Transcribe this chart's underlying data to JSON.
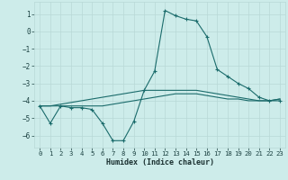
{
  "xlabel": "Humidex (Indice chaleur)",
  "bg_color": "#cdecea",
  "grid_color": "#b8d8d6",
  "line_color": "#1a6b6b",
  "xlim": [
    -0.5,
    23.5
  ],
  "ylim": [
    -6.7,
    1.7
  ],
  "yticks": [
    1,
    0,
    -1,
    -2,
    -3,
    -4,
    -5,
    -6
  ],
  "xticks": [
    0,
    1,
    2,
    3,
    4,
    5,
    6,
    7,
    8,
    9,
    10,
    11,
    12,
    13,
    14,
    15,
    16,
    17,
    18,
    19,
    20,
    21,
    22,
    23
  ],
  "series1_x": [
    0,
    1,
    2,
    3,
    4,
    5,
    6,
    7,
    8,
    9,
    10,
    11,
    12,
    13,
    14,
    15,
    16,
    17,
    18,
    19,
    20,
    21,
    22,
    23
  ],
  "series1_y": [
    -4.3,
    -5.3,
    -4.3,
    -4.4,
    -4.4,
    -4.5,
    -5.3,
    -6.3,
    -6.3,
    -5.2,
    -3.4,
    -2.3,
    1.2,
    0.9,
    0.7,
    0.6,
    -0.3,
    -2.2,
    -2.6,
    -3.0,
    -3.3,
    -3.8,
    -4.0,
    -4.0
  ],
  "series2_x": [
    0,
    1,
    2,
    3,
    4,
    5,
    6,
    7,
    8,
    9,
    10,
    11,
    12,
    13,
    14,
    15,
    16,
    17,
    18,
    19,
    20,
    21,
    22,
    23
  ],
  "series2_y": [
    -4.3,
    -4.3,
    -4.2,
    -4.1,
    -4.0,
    -3.9,
    -3.8,
    -3.7,
    -3.6,
    -3.5,
    -3.4,
    -3.4,
    -3.4,
    -3.4,
    -3.4,
    -3.4,
    -3.5,
    -3.6,
    -3.7,
    -3.8,
    -3.9,
    -4.0,
    -4.0,
    -3.9
  ],
  "series3_x": [
    0,
    1,
    2,
    3,
    4,
    5,
    6,
    7,
    8,
    9,
    10,
    11,
    12,
    13,
    14,
    15,
    16,
    17,
    18,
    19,
    20,
    21,
    22,
    23
  ],
  "series3_y": [
    -4.3,
    -4.3,
    -4.3,
    -4.3,
    -4.3,
    -4.3,
    -4.3,
    -4.2,
    -4.1,
    -4.0,
    -3.9,
    -3.8,
    -3.7,
    -3.6,
    -3.6,
    -3.6,
    -3.7,
    -3.8,
    -3.9,
    -3.9,
    -4.0,
    -4.0,
    -4.0,
    -3.9
  ]
}
